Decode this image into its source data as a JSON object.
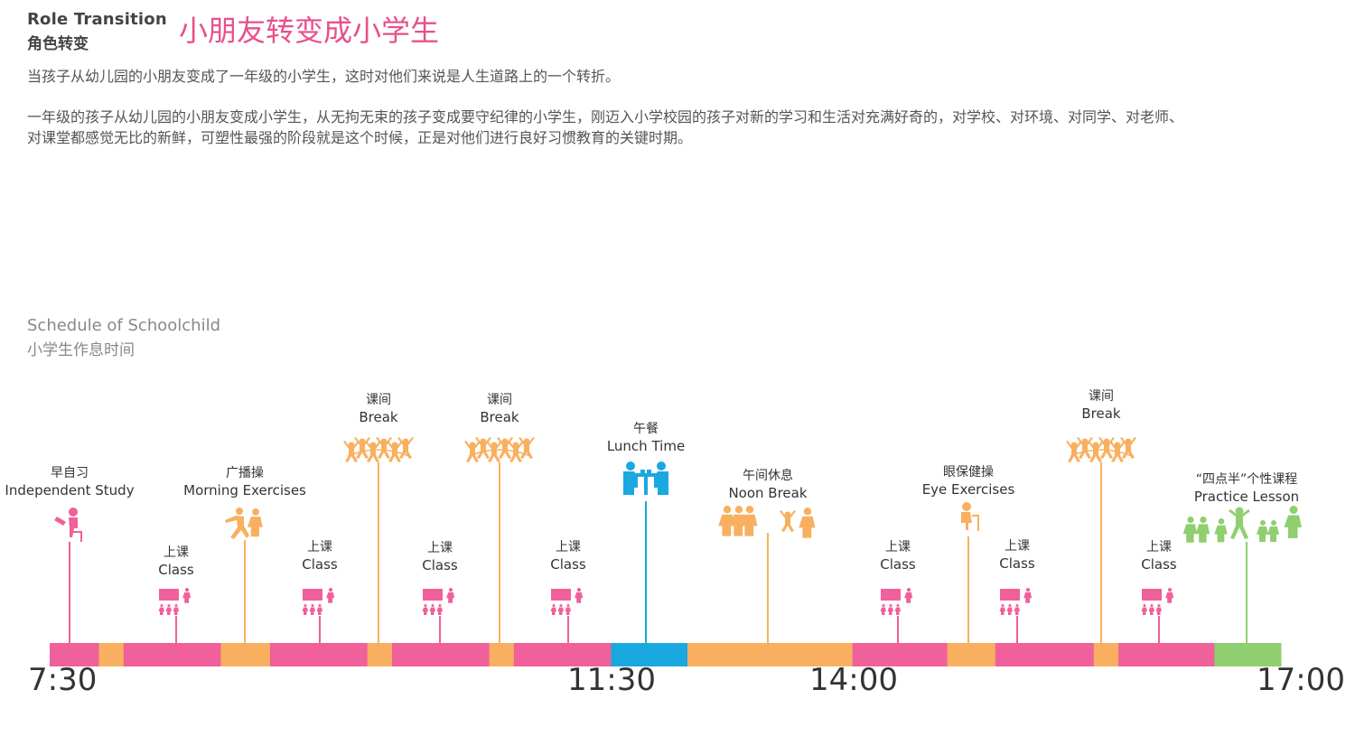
{
  "header": {
    "title_en": "Role Transition",
    "title_cn": "角色转变",
    "main_title": "小朋友转变成小学生"
  },
  "paragraphs": [
    "当孩子从幼儿园的小朋友变成了一年级的小学生，这时对他们来说是人生道路上的一个转折。",
    "一年级的孩子从幼儿园的小朋友变成小学生，从无拘无束的孩子变成要守纪律的小学生，刚迈入小学校园的孩子对新的学习和生活对充满好奇的，对学校、对环境、对同学、对老师、",
    "对课堂都感觉无比的新鲜，可塑性最强的阶段就是这个时候，正是对他们进行良好习惯教育的关键时期。"
  ],
  "schedule": {
    "title_en": "Schedule of Schoolchild",
    "title_cn": "小学生作息时间"
  },
  "colors": {
    "class": "#f0609a",
    "break": "#f8b060",
    "lunch": "#1aa8e0",
    "practice": "#8fcf6f",
    "title_pink": "#e8508b"
  },
  "timeline_segments": [
    {
      "type": "class",
      "start": 0.0,
      "end": 0.04
    },
    {
      "type": "break",
      "start": 0.04,
      "end": 0.06
    },
    {
      "type": "class",
      "start": 0.06,
      "end": 0.139
    },
    {
      "type": "break",
      "start": 0.139,
      "end": 0.179
    },
    {
      "type": "class",
      "start": 0.179,
      "end": 0.258
    },
    {
      "type": "break",
      "start": 0.258,
      "end": 0.278
    },
    {
      "type": "class",
      "start": 0.278,
      "end": 0.357
    },
    {
      "type": "break",
      "start": 0.357,
      "end": 0.377
    },
    {
      "type": "class",
      "start": 0.377,
      "end": 0.456
    },
    {
      "type": "lunch",
      "start": 0.456,
      "end": 0.518
    },
    {
      "type": "break",
      "start": 0.518,
      "end": 0.652
    },
    {
      "type": "class",
      "start": 0.652,
      "end": 0.729
    },
    {
      "type": "break",
      "start": 0.729,
      "end": 0.768
    },
    {
      "type": "class",
      "start": 0.768,
      "end": 0.848
    },
    {
      "type": "break",
      "start": 0.848,
      "end": 0.868
    },
    {
      "type": "class",
      "start": 0.868,
      "end": 0.946
    },
    {
      "type": "practice",
      "start": 0.946,
      "end": 1.0
    }
  ],
  "events": [
    {
      "cn": "早自习",
      "en": "Independent Study",
      "type": "class",
      "icon": "reading-child-icon"
    },
    {
      "cn": "上课",
      "en": "Class",
      "type": "class",
      "icon": "classroom-icon"
    },
    {
      "cn": "广播操",
      "en": "Morning Exercises",
      "type": "break",
      "icon": "exercise-people-icon"
    },
    {
      "cn": "上课",
      "en": "Class",
      "type": "class",
      "icon": "classroom-icon"
    },
    {
      "cn": "课间",
      "en": "Break",
      "type": "break",
      "icon": "jumping-kids-icon"
    },
    {
      "cn": "上课",
      "en": "Class",
      "type": "class",
      "icon": "classroom-icon"
    },
    {
      "cn": "课间",
      "en": "Break",
      "type": "break",
      "icon": "jumping-kids-icon"
    },
    {
      "cn": "上课",
      "en": "Class",
      "type": "class",
      "icon": "classroom-icon"
    },
    {
      "cn": "午餐",
      "en": "Lunch Time",
      "type": "lunch",
      "icon": "dining-table-icon"
    },
    {
      "cn": "午间休息",
      "en": "Noon Break",
      "type": "break",
      "icon": "resting-kids-icon"
    },
    {
      "cn": "上课",
      "en": "Class",
      "type": "class",
      "icon": "classroom-icon"
    },
    {
      "cn": "眼保健操",
      "en": "Eye Exercises",
      "type": "break",
      "icon": "eye-exercise-child-icon"
    },
    {
      "cn": "上课",
      "en": "Class",
      "type": "class",
      "icon": "classroom-icon"
    },
    {
      "cn": "课间",
      "en": "Break",
      "type": "break",
      "icon": "jumping-kids-icon"
    },
    {
      "cn": "上课",
      "en": "Class",
      "type": "class",
      "icon": "classroom-icon"
    },
    {
      "cn": "“四点半”个性课程",
      "en": "Practice Lesson",
      "type": "practice",
      "icon": "practice-group-icon"
    }
  ],
  "time_labels": [
    "7:30",
    "11:30",
    "14:00",
    "17:00"
  ]
}
